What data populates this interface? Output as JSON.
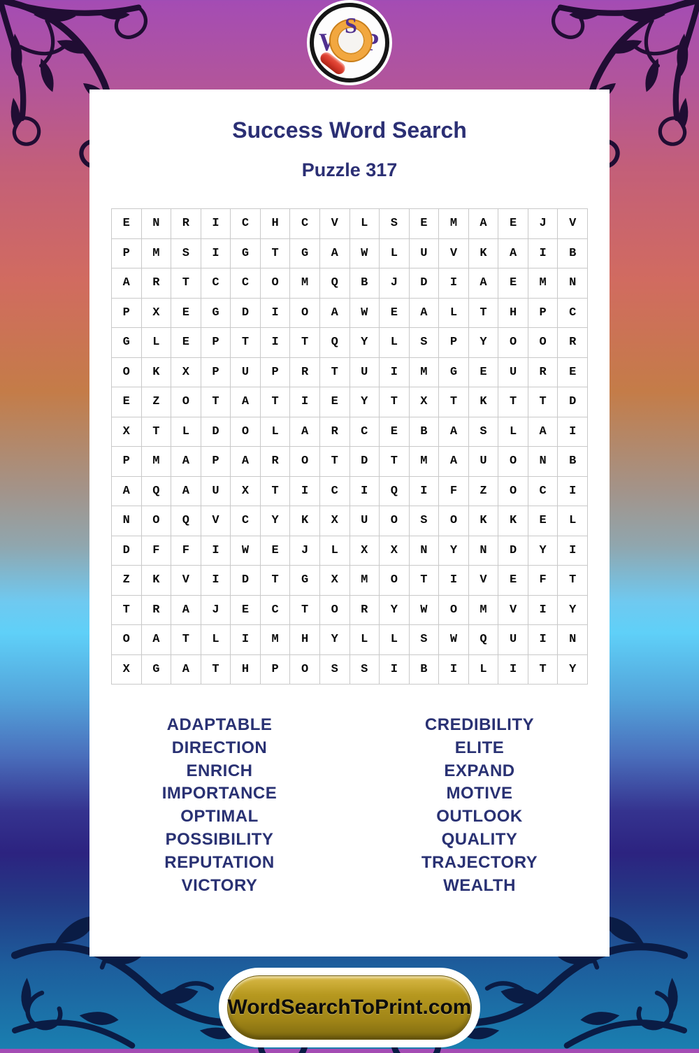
{
  "logo": {
    "letter_w": "W",
    "letter_s": "S",
    "letter_p": "P"
  },
  "header": {
    "title": "Success Word Search",
    "subtitle": "Puzzle 317"
  },
  "puzzle_grid": {
    "rows": [
      "ENRICHCVLSEMAEJV",
      "PMSIGTGAWLUVKAIB",
      "ARTCCOMQBJDIAEMN",
      "PXEGDIOAWEALTHPC",
      "GLEPTITQYLSPYOOR",
      "OKXPUPRTUIMGEURE",
      "EZOTATIEYTXTKTTD",
      "XTLDOLARCEBASLAI",
      "PMAPAROTDTMAUONB",
      "AQAUXTICIQIFZOCI",
      "NOQVCYKXUOSOKKEL",
      "DFFIWEJLXXNYNDYI",
      "ZKVIDTGXMOTIVEFT",
      "TRAJECTORYWOMVIY",
      "OATLIMHYLLSWQUIN",
      "XGATHPOSSIBILITY"
    ]
  },
  "word_list": {
    "left": [
      "ADAPTABLE",
      "DIRECTION",
      "ENRICH",
      "IMPORTANCE",
      "OPTIMAL",
      "POSSIBILITY",
      "REPUTATION",
      "VICTORY"
    ],
    "right": [
      "CREDIBILITY",
      "ELITE",
      "EXPAND",
      "MOTIVE",
      "OUTLOOK",
      "QUALITY",
      "TRAJECTORY",
      "WEALTH"
    ]
  },
  "footer": {
    "site_label": "WordSearchToPrint.com"
  },
  "colors": {
    "title_navy": "#2b2f74",
    "word_navy": "#293173",
    "grid_line": "#c9c9c9",
    "letter_black": "#0b0b0b",
    "button_gold": "#a08517",
    "logo_purple": "#50308f",
    "magnifier_orange": "#f2a73f",
    "handle_red": "#d5382a",
    "top_ornament": "#200d33",
    "bottom_ornament": "#0a1c45"
  }
}
